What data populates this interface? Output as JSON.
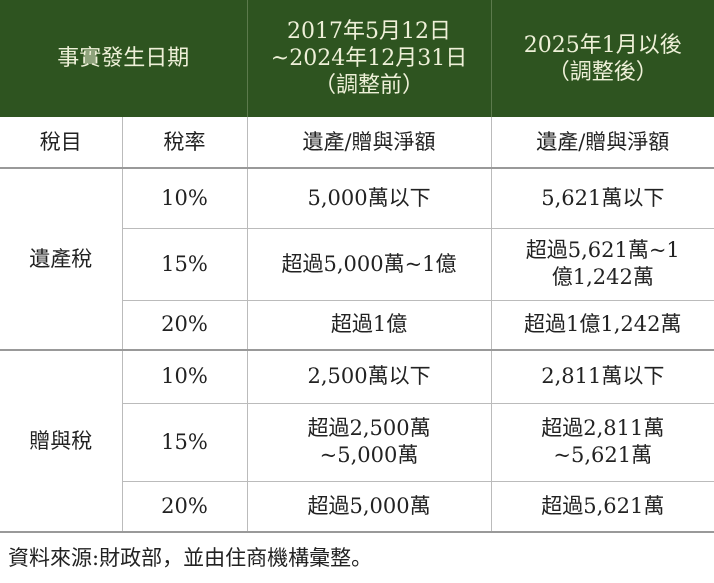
{
  "header": {
    "period_label": "事實發生日期",
    "before": {
      "line1": "2017年5月12日",
      "line2": "~2024年12月31日",
      "line3": "（調整前）"
    },
    "after": {
      "line1": "2025年1月以後",
      "line2": "（調整後）"
    }
  },
  "subheader": {
    "tax_type": "稅目",
    "rate": "稅率",
    "before_amount": "遺產/贈與淨額",
    "after_amount": "遺產/贈與淨額"
  },
  "groups": [
    {
      "tax_type": "遺產稅",
      "rows": [
        {
          "rate": "10%",
          "before": [
            "5,000萬以下"
          ],
          "after": [
            "5,621萬以下"
          ]
        },
        {
          "rate": "15%",
          "before": [
            "超過5,000萬~1億"
          ],
          "after": [
            "超過5,621萬~1",
            "億1,242萬"
          ]
        },
        {
          "rate": "20%",
          "before": [
            "超過1億"
          ],
          "after": [
            "超過1億1,242萬"
          ]
        }
      ]
    },
    {
      "tax_type": "贈與稅",
      "rows": [
        {
          "rate": "10%",
          "before": [
            "2,500萬以下"
          ],
          "after": [
            "2,811萬以下"
          ]
        },
        {
          "rate": "15%",
          "before": [
            "超過2,500萬",
            "~5,000萬"
          ],
          "after": [
            "超過2,811萬",
            "~5,621萬"
          ]
        },
        {
          "rate": "20%",
          "before": [
            "超過5,000萬"
          ],
          "after": [
            "超過5,621萬"
          ]
        }
      ]
    }
  ],
  "footnote": "資料來源:財政部，並由住商機構彙整。",
  "colors": {
    "header_bg": "#2e5420",
    "header_text": "#eef0d8"
  }
}
